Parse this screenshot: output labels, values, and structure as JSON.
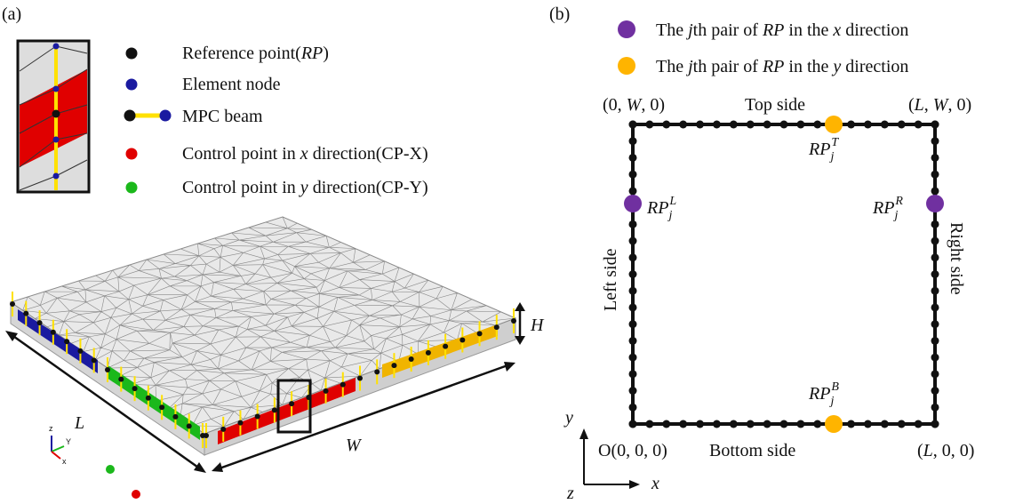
{
  "panel_a": {
    "label": "(a)",
    "legend": [
      [
        "Reference point(",
        "RP",
        ")"
      ],
      [
        "Element node"
      ],
      [
        "MPC beam"
      ],
      [
        "Control point in ",
        "x",
        " direction(CP-X)"
      ],
      [
        "Control point in ",
        "y",
        " direction(CP-Y)"
      ]
    ],
    "dimensions": {
      "length": "L",
      "width": "W",
      "height": "H"
    },
    "triad": {
      "z": "z",
      "y": "Y",
      "x": "x"
    }
  },
  "panel_b": {
    "label": "(b)",
    "legend": [
      [
        "The ",
        "j",
        "th pair of ",
        "RP",
        " in the ",
        "x",
        " direction"
      ],
      [
        "The ",
        "j",
        "th pair of ",
        "RP",
        " in the ",
        "y",
        " direction"
      ]
    ],
    "corners": {
      "top_left": [
        "(0, ",
        "W",
        ", 0)"
      ],
      "top_right": [
        "(",
        "L",
        ", ",
        "W",
        ", 0)"
      ],
      "bottom_right": [
        "(",
        "L",
        ", 0, 0)"
      ],
      "origin": [
        "O(0, 0, 0)"
      ]
    },
    "sides": {
      "top": "Top side",
      "bottom": "Bottom side",
      "left": "Left side",
      "right": "Right side"
    },
    "points": {
      "top": {
        "base": "RP",
        "sub": "j",
        "sup": "T"
      },
      "left": {
        "base": "RP",
        "sub": "j",
        "sup": "L"
      },
      "right": {
        "base": "RP",
        "sub": "j",
        "sup": "R"
      },
      "bottom": {
        "base": "RP",
        "sub": "j",
        "sup": "B"
      }
    },
    "axes": {
      "y": "y",
      "x": "x",
      "z": "z"
    }
  }
}
